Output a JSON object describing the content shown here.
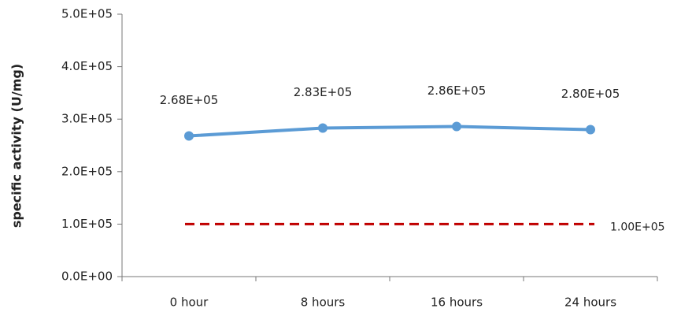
{
  "chart_data": {
    "type": "line",
    "ylabel": "specific activity (U/mg)",
    "categories": [
      "0 hour",
      "8 hours",
      "16 hours",
      "24 hours"
    ],
    "values": [
      268000,
      283000,
      286000,
      280000
    ],
    "value_labels": [
      "2.68E+05",
      "2.83E+05",
      "2.86E+05",
      "2.80E+05"
    ],
    "color": "#5b9bd5",
    "reference_line": {
      "value": 100000,
      "label": "1.00E+05",
      "color": "#c00000"
    },
    "ylim": [
      0,
      500000
    ],
    "yticks": [
      {
        "value": 0,
        "label": "0.0E+00"
      },
      {
        "value": 100000,
        "label": "1.0E+05"
      },
      {
        "value": 200000,
        "label": "2.0E+05"
      },
      {
        "value": 300000,
        "label": "3.0E+05"
      },
      {
        "value": 400000,
        "label": "4.0E+05"
      },
      {
        "value": 500000,
        "label": "5.0E+05"
      }
    ],
    "grid": false
  }
}
